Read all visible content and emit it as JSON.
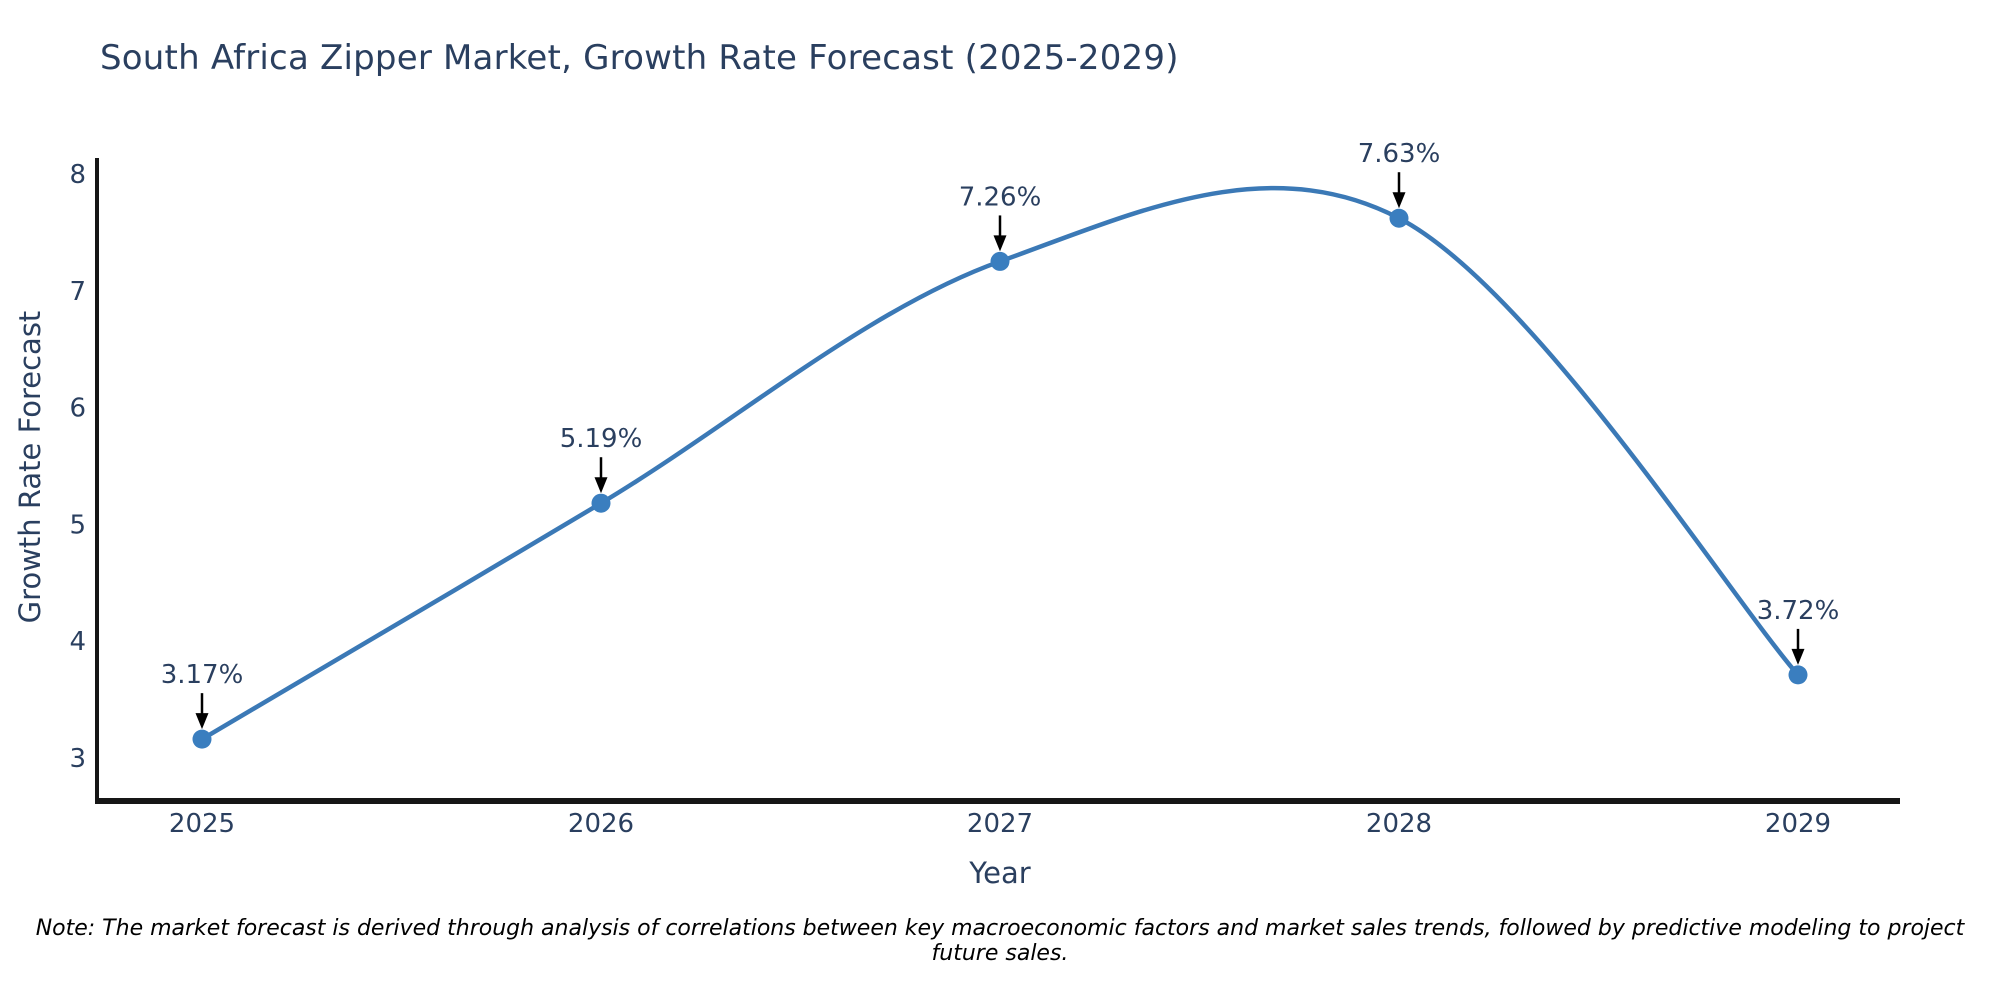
{
  "chart_data": {
    "type": "line",
    "title": "South Africa Zipper Market, Growth Rate Forecast (2025-2029)",
    "xlabel": "Year",
    "ylabel": "Growth Rate Forecast",
    "categories": [
      2025,
      2026,
      2027,
      2028,
      2029
    ],
    "values": [
      3.17,
      5.19,
      7.26,
      7.63,
      3.72
    ],
    "point_labels": [
      "3.17%",
      "5.19%",
      "7.26%",
      "7.63%",
      "3.72%"
    ],
    "yticks": [
      3,
      4,
      5,
      6,
      7,
      8
    ],
    "ylim": [
      2.62,
      8.13
    ],
    "xlim": [
      2024.74,
      2029.27
    ],
    "line_shape": "spline",
    "grid": false,
    "legend": "none",
    "colors": {
      "line": "#3b79b6",
      "marker": "#3a7ebf",
      "text": "#2a3f5f",
      "axis": "#161616",
      "arrow": "#000000",
      "background": "#ffffff"
    }
  },
  "note": "Note: The market forecast is derived through analysis of correlations between key macroeconomic factors and market sales trends, followed by predictive modeling to project future sales."
}
